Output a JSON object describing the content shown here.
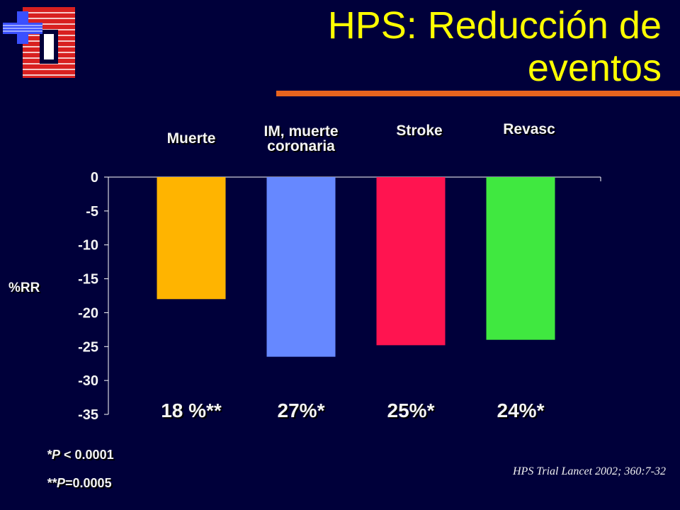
{
  "slide": {
    "title_line1": "HPS: Reducción de",
    "title_line2": "eventos",
    "ylabel": "%RR",
    "percent_labels": [
      "18 %**",
      "27%*",
      "25%*",
      "24%*"
    ],
    "notes": {
      "p1_prefix": "*P",
      "p1_rest": " < 0.0001",
      "p2_prefix": "**P",
      "p2_rest": "=0.0005"
    },
    "source": "HPS Trial Lancet 2002; 360:7-32",
    "colors": {
      "title": "#ffff00",
      "background": "#00003a",
      "rule": "#e8641e"
    },
    "logo_icon": "hospital-logo-icon"
  },
  "chart_data": {
    "type": "bar",
    "categories": [
      "Muerte",
      "IM, muerte coronaria",
      "Stroke",
      "Revasc"
    ],
    "category_lines": [
      [
        "Muerte"
      ],
      [
        "IM, muerte",
        "coronaria"
      ],
      [
        "Stroke"
      ],
      [
        "Revasc"
      ]
    ],
    "values": [
      -18,
      -26.5,
      -24.8,
      -24
    ],
    "colors": [
      "#ffb400",
      "#6688ff",
      "#ff1450",
      "#40e840"
    ],
    "ylabel": "%RR",
    "ylim": [
      -35,
      0
    ],
    "yticks": [
      0,
      -5,
      -10,
      -15,
      -20,
      -25,
      -30,
      -35
    ],
    "grid": false
  }
}
